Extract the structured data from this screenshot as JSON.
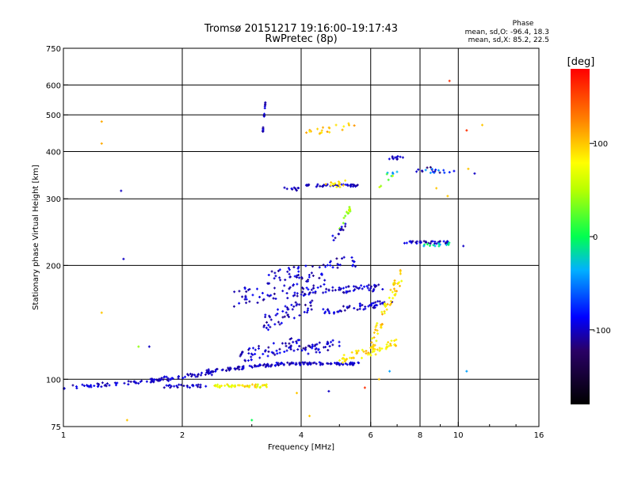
{
  "chart_data": {
    "type": "scatter",
    "title": "Tromsø 20151217 19:16:00–19:17:43",
    "subtitle": "RwPretec (8p)",
    "xlabel": "Frequency [MHz]",
    "ylabel": "Stationary phase Virtual Height [km]",
    "x_scale": "log",
    "y_scale": "log",
    "xlim": [
      1,
      16
    ],
    "ylim": [
      75,
      750
    ],
    "x_ticks": [
      1,
      2,
      4,
      6,
      8,
      10,
      16
    ],
    "x_tick_labels": [
      "1",
      "2",
      "4",
      "6",
      "8",
      "10",
      "16"
    ],
    "y_ticks": [
      75,
      100,
      200,
      300,
      400,
      500,
      600,
      750
    ],
    "y_tick_labels": [
      "75",
      "100",
      "200",
      "300",
      "400",
      "500",
      "600",
      "750"
    ],
    "grid": true,
    "stats": {
      "heading": "Phase",
      "line_o": "mean, sd,O: -96.4, 18.3",
      "line_x": "mean, sd,X:  85.2, 22.5"
    },
    "colorbar": {
      "label": "[deg]",
      "range": [
        -180,
        180
      ],
      "ticks": [
        100,
        0,
        -100
      ],
      "tick_labels": [
        "100",
        "0",
        "-100"
      ]
    },
    "traces": [
      {
        "f0": 1.0,
        "f1": 1.9,
        "h0": 95,
        "h1": 100,
        "n": 60,
        "ph": -100,
        "phs": 12,
        "hj": 0.012
      },
      {
        "f0": 1.6,
        "f1": 2.4,
        "h0": 99,
        "h1": 104,
        "n": 40,
        "ph": -100,
        "phs": 12,
        "hj": 0.012
      },
      {
        "f0": 2.3,
        "f1": 3.6,
        "h0": 105,
        "h1": 110,
        "n": 80,
        "ph": -100,
        "phs": 12,
        "hj": 0.01
      },
      {
        "f0": 3.6,
        "f1": 5.6,
        "h0": 110,
        "h1": 110,
        "n": 70,
        "ph": -100,
        "phs": 10,
        "hj": 0.008
      },
      {
        "f0": 1.8,
        "f1": 2.4,
        "h0": 96,
        "h1": 96,
        "n": 25,
        "ph": -100,
        "phs": 10,
        "hj": 0.01
      },
      {
        "f0": 2.4,
        "f1": 3.3,
        "h0": 96,
        "h1": 96,
        "n": 45,
        "ph": 80,
        "phs": 25,
        "hj": 0.01
      },
      {
        "f0": 5.0,
        "f1": 7.1,
        "h0": 112,
        "h1": 125,
        "n": 60,
        "ph": 90,
        "phs": 20,
        "hj": 0.03
      },
      {
        "f0": 2.8,
        "f1": 4.0,
        "h0": 115,
        "h1": 125,
        "n": 60,
        "ph": -100,
        "phs": 15,
        "hj": 0.04
      },
      {
        "f0": 4.0,
        "f1": 5.0,
        "h0": 118,
        "h1": 125,
        "n": 35,
        "ph": -100,
        "phs": 15,
        "hj": 0.03
      },
      {
        "f0": 2.7,
        "f1": 4.6,
        "h0": 165,
        "h1": 180,
        "n": 70,
        "ph": -100,
        "phs": 15,
        "hj": 0.06
      },
      {
        "f0": 3.2,
        "f1": 4.3,
        "h0": 140,
        "h1": 160,
        "n": 50,
        "ph": -100,
        "phs": 15,
        "hj": 0.05
      },
      {
        "f0": 4.0,
        "f1": 6.5,
        "h0": 170,
        "h1": 175,
        "n": 60,
        "ph": -100,
        "phs": 15,
        "hj": 0.02
      },
      {
        "f0": 4.5,
        "f1": 6.8,
        "h0": 150,
        "h1": 160,
        "n": 50,
        "ph": -100,
        "phs": 15,
        "hj": 0.02
      },
      {
        "f0": 6.0,
        "f1": 7.2,
        "h0": 120,
        "h1": 190,
        "n": 60,
        "ph": 90,
        "phs": 25,
        "hj": 0.05
      },
      {
        "f0": 3.3,
        "f1": 5.5,
        "h0": 185,
        "h1": 205,
        "n": 50,
        "ph": -100,
        "phs": 15,
        "hj": 0.04
      },
      {
        "f0": 3.5,
        "f1": 4.0,
        "h0": 318,
        "h1": 318,
        "n": 10,
        "ph": -100,
        "phs": 10,
        "hj": 0.01
      },
      {
        "f0": 4.0,
        "f1": 5.6,
        "h0": 325,
        "h1": 325,
        "n": 40,
        "ph": -100,
        "phs": 12,
        "hj": 0.008
      },
      {
        "f0": 4.6,
        "f1": 5.2,
        "h0": 325,
        "h1": 330,
        "n": 15,
        "ph": 90,
        "phs": 15,
        "hj": 0.02
      },
      {
        "f0": 7.3,
        "f1": 9.5,
        "h0": 230,
        "h1": 230,
        "n": 35,
        "ph": -100,
        "phs": 15,
        "hj": 0.008
      },
      {
        "f0": 8.0,
        "f1": 9.5,
        "h0": 225,
        "h1": 228,
        "n": 15,
        "ph": -20,
        "phs": 25,
        "hj": 0.01
      },
      {
        "f0": 6.5,
        "f1": 7.3,
        "h0": 385,
        "h1": 385,
        "n": 12,
        "ph": -100,
        "phs": 15,
        "hj": 0.01
      },
      {
        "f0": 7.8,
        "f1": 9.8,
        "h0": 355,
        "h1": 360,
        "n": 20,
        "ph": -80,
        "phs": 40,
        "hj": 0.02
      },
      {
        "f0": 4.0,
        "f1": 5.5,
        "h0": 445,
        "h1": 470,
        "n": 20,
        "ph": 100,
        "phs": 20,
        "hj": 0.02
      },
      {
        "f0": 5.0,
        "f1": 5.4,
        "h0": 250,
        "h1": 290,
        "n": 15,
        "ph": 40,
        "phs": 25,
        "hj": 0.02
      },
      {
        "f0": 4.8,
        "f1": 5.2,
        "h0": 235,
        "h1": 255,
        "n": 12,
        "ph": -100,
        "phs": 15,
        "hj": 0.02
      },
      {
        "f0": 3.2,
        "f1": 3.25,
        "h0": 450,
        "h1": 550,
        "n": 16,
        "ph": -100,
        "phs": 10,
        "hj": 0.01
      },
      {
        "f0": 6.2,
        "f1": 7.0,
        "h0": 320,
        "h1": 360,
        "n": 10,
        "ph": 0,
        "phs": 60,
        "hj": 0.03
      }
    ],
    "scatter_points": [
      {
        "x": 1.25,
        "y": 480,
        "ph": 110
      },
      {
        "x": 1.25,
        "y": 420,
        "ph": 110
      },
      {
        "x": 1.4,
        "y": 315,
        "ph": -100
      },
      {
        "x": 1.42,
        "y": 208,
        "ph": -100
      },
      {
        "x": 1.25,
        "y": 150,
        "ph": 100
      },
      {
        "x": 1.55,
        "y": 122,
        "ph": 40
      },
      {
        "x": 1.65,
        "y": 122,
        "ph": -100
      },
      {
        "x": 1.45,
        "y": 78,
        "ph": 100
      },
      {
        "x": 9.5,
        "y": 615,
        "ph": 160
      },
      {
        "x": 10.5,
        "y": 455,
        "ph": 160
      },
      {
        "x": 10.6,
        "y": 360,
        "ph": 100
      },
      {
        "x": 11.0,
        "y": 350,
        "ph": -100
      },
      {
        "x": 10.3,
        "y": 225,
        "ph": -100
      },
      {
        "x": 10.5,
        "y": 105,
        "ph": -40
      },
      {
        "x": 11.5,
        "y": 470,
        "ph": 100
      },
      {
        "x": 3.9,
        "y": 92,
        "ph": 100
      },
      {
        "x": 4.2,
        "y": 80,
        "ph": 100
      },
      {
        "x": 4.7,
        "y": 93,
        "ph": -100
      },
      {
        "x": 5.8,
        "y": 95,
        "ph": 160
      },
      {
        "x": 6.3,
        "y": 100,
        "ph": 100
      },
      {
        "x": 6.7,
        "y": 105,
        "ph": -40
      },
      {
        "x": 3.0,
        "y": 78,
        "ph": 0
      },
      {
        "x": 9.4,
        "y": 305,
        "ph": 100
      },
      {
        "x": 8.8,
        "y": 320,
        "ph": 100
      }
    ]
  }
}
